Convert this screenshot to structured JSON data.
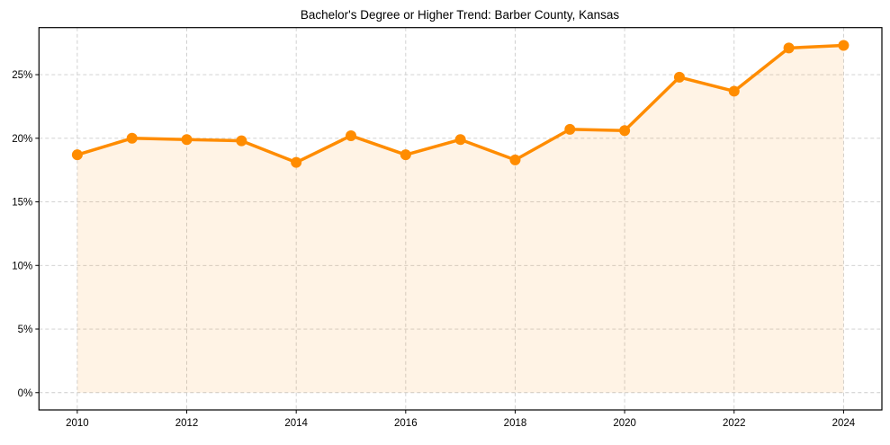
{
  "chart_data": {
    "type": "line",
    "title": "Bachelor's Degree or Higher Trend: Barber County, Kansas",
    "xlabel": "",
    "ylabel": "",
    "x": [
      2010,
      2011,
      2012,
      2013,
      2014,
      2015,
      2016,
      2017,
      2018,
      2019,
      2020,
      2021,
      2022,
      2023,
      2024
    ],
    "series": [
      {
        "name": "Bachelor's Degree or Higher (%)",
        "values": [
          18.7,
          20.0,
          19.9,
          19.8,
          18.1,
          20.2,
          18.7,
          19.9,
          18.3,
          20.7,
          20.6,
          24.8,
          23.7,
          27.1,
          27.3
        ],
        "color": "#FF8C00",
        "fill_color": "#FF8C00",
        "fill_opacity": 0.1,
        "marker": "circle"
      }
    ],
    "xticks": [
      2010,
      2012,
      2014,
      2016,
      2018,
      2020,
      2022,
      2024
    ],
    "xtick_labels": [
      "2010",
      "2012",
      "2014",
      "2016",
      "2018",
      "2020",
      "2022",
      "2024"
    ],
    "yticks": [
      0,
      5,
      10,
      15,
      20,
      25
    ],
    "ytick_labels": [
      "0%",
      "5%",
      "10%",
      "15%",
      "20%",
      "25%"
    ],
    "xlim": [
      2009.3,
      2024.7
    ],
    "ylim": [
      -1.36,
      28.7
    ],
    "grid": true,
    "grid_style": "dashed",
    "legend": null
  }
}
